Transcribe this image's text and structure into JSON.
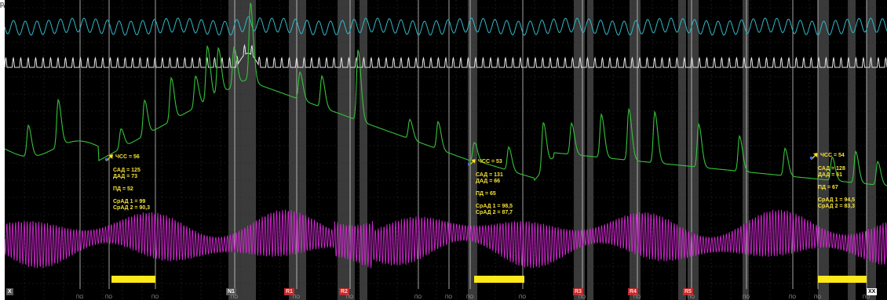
{
  "corner_text": "рд",
  "colors": {
    "background": "#000000",
    "trace_cyan": "#2fb8c7",
    "trace_white": "#e6e6e6",
    "trace_green": "#35c23a",
    "trace_magenta": "#cf27cf",
    "annotation_text": "#f5e33a",
    "segment_bar": "#ffe81a",
    "shaded_band": "#3a3a3a",
    "grid": "#2a2a2a",
    "marker_line": "#d8d8d8"
  },
  "annotations": [
    {
      "icon": "marker-arrow-icon",
      "hr": "ЧСС = 56",
      "sad": "САД = 125",
      "dad": "ДАД = 73",
      "pd": "ПД = 52",
      "srad1": "СрАД 1 = 99",
      "srad2": "СрАД 2 = 90,3"
    },
    {
      "icon": "marker-arrow-icon",
      "hr": "ЧСС = 53",
      "sad": "САД = 131",
      "dad": "ДАД = 66",
      "pd": "ПД = 65",
      "srad1": "СрАД 1 = 98,5",
      "srad2": "СрАД 2 = 87,7"
    },
    {
      "icon": "marker-arrow-icon",
      "hr": "ЧСС = 54",
      "sad": "САД = 128",
      "dad": "ДАД = 61",
      "pd": "ПД = 67",
      "srad1": "СрАД 1 = 94,5",
      "srad2": "СрАД 2 = 83,3"
    }
  ],
  "event_tags": [
    {
      "label": "X",
      "style": "plain"
    },
    {
      "label": "N1",
      "style": "plain"
    },
    {
      "label": "R1",
      "style": "red"
    },
    {
      "label": "R2",
      "style": "red"
    },
    {
      "label": "R3",
      "style": "red"
    },
    {
      "label": "R4",
      "style": "red"
    },
    {
      "label": "R5",
      "style": "red"
    },
    {
      "label": "XX",
      "style": "white"
    }
  ],
  "pd_tick_label": "ПО"
}
